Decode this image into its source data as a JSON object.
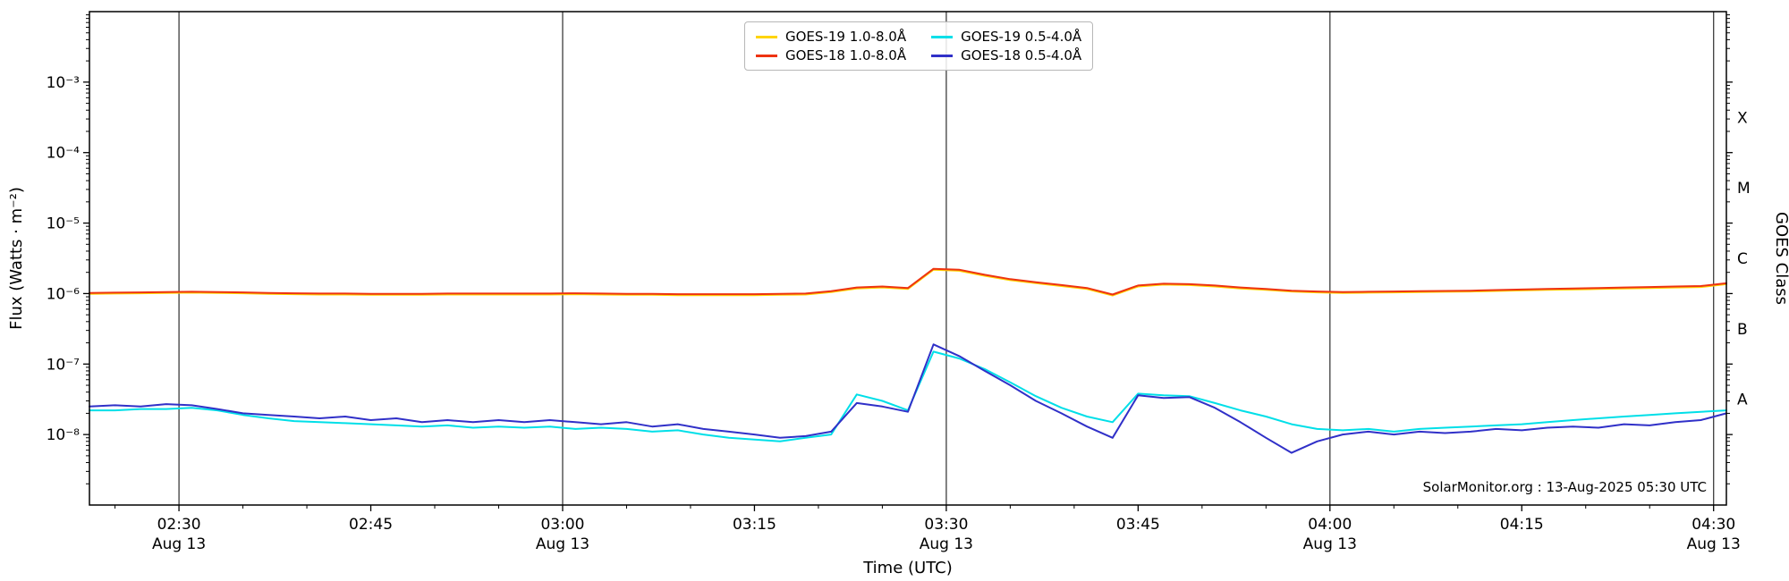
{
  "chart_data": {
    "type": "line",
    "title": "",
    "xlabel": "Time (UTC)",
    "ylabel": "Flux (Watts · m⁻²)",
    "ylabel_right": "GOES Class",
    "watermark": "SolarMonitor.org : 13-Aug-2025 05:30 UTC",
    "y_scale": "log",
    "grid": "vertical-only",
    "legend_position": "upper-center",
    "legend_columns": 2,
    "ylim": [
      1e-09,
      0.01
    ],
    "x_domain_minutes": [
      143,
      271
    ],
    "x_minor_step_minutes": 5,
    "grid_minutes": [
      150,
      180,
      210,
      240,
      270
    ],
    "x_ticks": [
      {
        "minutes": 150,
        "label": "02:30",
        "date": "Aug 13"
      },
      {
        "minutes": 165,
        "label": "02:45"
      },
      {
        "minutes": 180,
        "label": "03:00",
        "date": "Aug 13"
      },
      {
        "minutes": 195,
        "label": "03:15"
      },
      {
        "minutes": 210,
        "label": "03:30",
        "date": "Aug 13"
      },
      {
        "minutes": 225,
        "label": "03:45"
      },
      {
        "minutes": 240,
        "label": "04:00",
        "date": "Aug 13"
      },
      {
        "minutes": 255,
        "label": "04:15"
      },
      {
        "minutes": 270,
        "label": "04:30",
        "date": "Aug 13"
      }
    ],
    "y_ticks": [
      {
        "value": 0.001,
        "label": "10⁻³"
      },
      {
        "value": 0.0001,
        "label": "10⁻⁴"
      },
      {
        "value": 1e-05,
        "label": "10⁻⁵"
      },
      {
        "value": 1e-06,
        "label": "10⁻⁶"
      },
      {
        "value": 1e-07,
        "label": "10⁻⁷"
      },
      {
        "value": 1e-08,
        "label": "10⁻⁸"
      }
    ],
    "goes_classes": [
      {
        "label": "X",
        "value": 0.000316
      },
      {
        "label": "M",
        "value": 3.16e-05
      },
      {
        "label": "C",
        "value": 3.16e-06
      },
      {
        "label": "B",
        "value": 3.16e-07
      },
      {
        "label": "A",
        "value": 3.16e-08
      }
    ],
    "series": [
      {
        "name": "GOES-19 1.0-8.0Å",
        "color": "#ffd400",
        "scale": 1e-06,
        "x_start": 143,
        "x_step": 2,
        "values": [
          0.99,
          1.0,
          1.01,
          1.02,
          1.03,
          1.02,
          1.01,
          0.99,
          0.98,
          0.97,
          0.97,
          0.96,
          0.96,
          0.96,
          0.97,
          0.97,
          0.97,
          0.97,
          0.97,
          0.98,
          0.97,
          0.96,
          0.96,
          0.95,
          0.95,
          0.95,
          0.95,
          0.96,
          0.97,
          1.05,
          1.18,
          1.22,
          1.16,
          2.18,
          2.11,
          1.79,
          1.55,
          1.41,
          1.28,
          1.16,
          0.94,
          1.26,
          1.34,
          1.32,
          1.26,
          1.18,
          1.13,
          1.07,
          1.04,
          1.02,
          1.03,
          1.04,
          1.05,
          1.06,
          1.07,
          1.09,
          1.11,
          1.13,
          1.14,
          1.16,
          1.18,
          1.2,
          1.22,
          1.24,
          1.36
        ]
      },
      {
        "name": "GOES-18 1.0-8.0Å",
        "color": "#ee3311",
        "scale": 1e-06,
        "x_start": 143,
        "x_step": 2,
        "values": [
          1.02,
          1.03,
          1.04,
          1.05,
          1.06,
          1.05,
          1.04,
          1.02,
          1.01,
          1.0,
          1.0,
          0.99,
          0.99,
          0.99,
          1.0,
          1.0,
          1.0,
          1.0,
          1.0,
          1.01,
          1.0,
          0.99,
          0.99,
          0.98,
          0.98,
          0.98,
          0.98,
          0.99,
          1.0,
          1.08,
          1.22,
          1.26,
          1.2,
          2.25,
          2.18,
          1.85,
          1.6,
          1.45,
          1.32,
          1.2,
          0.97,
          1.3,
          1.38,
          1.36,
          1.3,
          1.22,
          1.16,
          1.1,
          1.07,
          1.05,
          1.06,
          1.07,
          1.08,
          1.09,
          1.1,
          1.12,
          1.14,
          1.16,
          1.18,
          1.2,
          1.22,
          1.24,
          1.26,
          1.28,
          1.4
        ]
      },
      {
        "name": "GOES-19 0.5-4.0Å",
        "color": "#00dfe8",
        "scale": 1e-08,
        "x_start": 143,
        "x_step": 2,
        "values": [
          2.2,
          2.2,
          2.3,
          2.3,
          2.4,
          2.2,
          1.9,
          1.7,
          1.55,
          1.5,
          1.45,
          1.4,
          1.35,
          1.3,
          1.35,
          1.25,
          1.3,
          1.25,
          1.3,
          1.2,
          1.25,
          1.2,
          1.1,
          1.15,
          1.0,
          0.9,
          0.85,
          0.8,
          0.9,
          1.0,
          3.7,
          3.0,
          2.2,
          15.0,
          12.0,
          8.5,
          5.5,
          3.5,
          2.4,
          1.8,
          1.5,
          3.8,
          3.6,
          3.5,
          2.8,
          2.2,
          1.8,
          1.4,
          1.2,
          1.15,
          1.2,
          1.1,
          1.2,
          1.25,
          1.3,
          1.35,
          1.4,
          1.5,
          1.6,
          1.7,
          1.8,
          1.9,
          2.0,
          2.1,
          2.2
        ]
      },
      {
        "name": "GOES-18 0.5-4.0Å",
        "color": "#3030c8",
        "scale": 1e-08,
        "x_start": 143,
        "x_step": 2,
        "values": [
          2.5,
          2.6,
          2.5,
          2.7,
          2.6,
          2.3,
          2.0,
          1.9,
          1.8,
          1.7,
          1.8,
          1.6,
          1.7,
          1.5,
          1.6,
          1.5,
          1.6,
          1.5,
          1.6,
          1.5,
          1.4,
          1.5,
          1.3,
          1.4,
          1.2,
          1.1,
          1.0,
          0.9,
          0.95,
          1.1,
          2.8,
          2.5,
          2.1,
          19.0,
          13.0,
          8.0,
          5.0,
          3.0,
          2.0,
          1.3,
          0.9,
          3.6,
          3.3,
          3.4,
          2.4,
          1.5,
          0.9,
          0.55,
          0.8,
          1.0,
          1.1,
          1.0,
          1.1,
          1.05,
          1.1,
          1.2,
          1.15,
          1.25,
          1.3,
          1.25,
          1.4,
          1.35,
          1.5,
          1.6,
          2.0
        ]
      }
    ]
  }
}
